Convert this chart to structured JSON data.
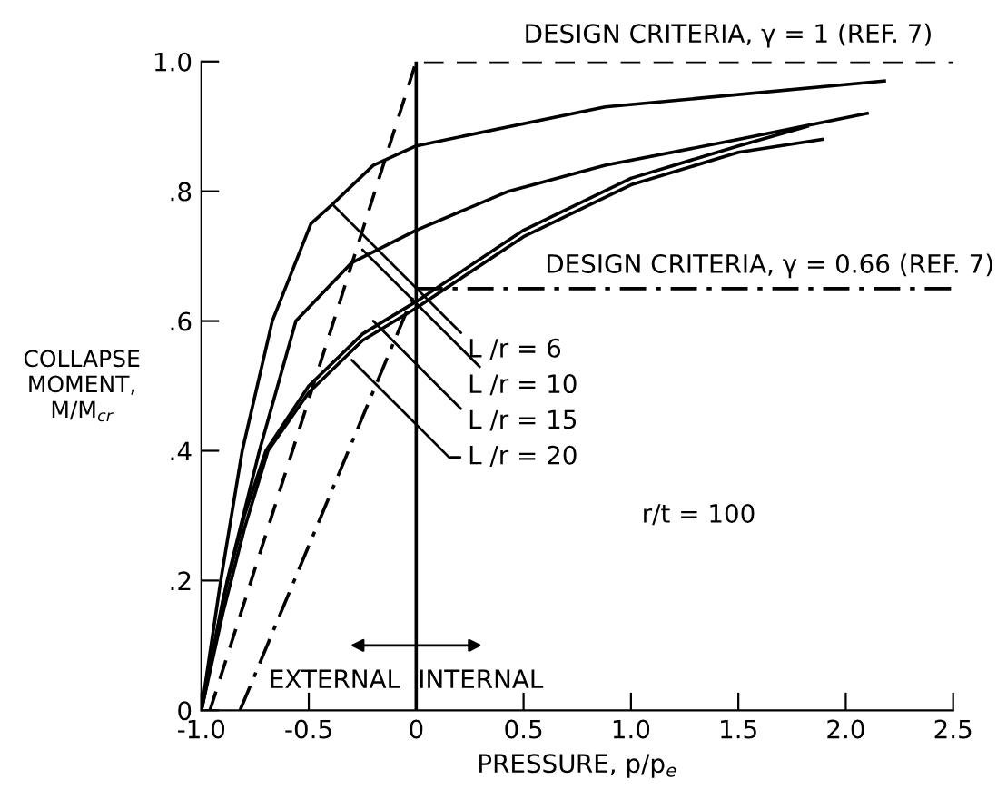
{
  "chart_data": {
    "type": "line",
    "xlabel": "PRESSURE, p/p$_{e}$",
    "ylabel": "COLLAPSE\nMOMENT,\nM/M$_{cr}$",
    "xlim": [
      -1.0,
      2.5
    ],
    "ylim": [
      0,
      1.0
    ],
    "xticks": [
      {
        "value": -1.0,
        "label": "-1.0"
      },
      {
        "value": -0.5,
        "label": "-0.5"
      },
      0,
      0.5,
      {
        "value": 1.0,
        "label": "1.0"
      },
      1.5,
      {
        "value": 2.0,
        "label": "2.0"
      },
      2.5
    ],
    "yticks": [
      0,
      {
        "value": 0.2,
        "label": ".2"
      },
      {
        "value": 0.4,
        "label": ".4"
      },
      {
        "value": 0.6,
        "label": ".6"
      },
      {
        "value": 0.8,
        "label": ".8"
      },
      {
        "value": 1.0,
        "label": "1.0"
      }
    ],
    "grid": false,
    "series": [
      {
        "color": "#000000",
        "line_style": "solid",
        "x": [
          -1.0,
          -0.91,
          -0.81,
          -0.67,
          -0.49,
          -0.39,
          -0.2,
          0,
          0.88,
          2.18
        ],
        "values": [
          0,
          0.2,
          0.4,
          0.6,
          0.75,
          0.78,
          0.84,
          0.87,
          0.93,
          0.97
        ]
      },
      {
        "color": "#000000",
        "line_style": "solid",
        "x": [
          -1.0,
          -0.88,
          -0.73,
          -0.56,
          -0.3,
          0,
          0.43,
          0.88,
          1.5,
          2.1
        ],
        "values": [
          0,
          0.2,
          0.4,
          0.6,
          0.69,
          0.74,
          0.8,
          0.84,
          0.88,
          0.92
        ]
      },
      {
        "color": "#000000",
        "line_style": "solid",
        "x": [
          -1.0,
          -0.9,
          -0.8,
          -0.7,
          -0.5,
          -0.25,
          0,
          0.5,
          1.0,
          1.5,
          1.82
        ],
        "values": [
          0,
          0.17,
          0.3,
          0.4,
          0.5,
          0.58,
          0.63,
          0.74,
          0.82,
          0.87,
          0.9
        ]
      },
      {
        "color": "#000000",
        "line_style": "solid",
        "x": [
          -1.0,
          -0.9,
          -0.8,
          -0.69,
          -0.5,
          -0.25,
          0,
          0.5,
          1.0,
          1.5,
          1.89
        ],
        "values": [
          0,
          0.15,
          0.28,
          0.4,
          0.49,
          0.57,
          0.62,
          0.73,
          0.81,
          0.86,
          0.88
        ]
      },
      {
        "color": "#000000",
        "line_style": "dashed",
        "x": [
          -0.96,
          0,
          2.5
        ],
        "values": [
          0,
          1.0,
          1.0
        ]
      },
      {
        "color": "#000000",
        "line_style": "dashdot",
        "x": [
          -0.82,
          0,
          2.5
        ],
        "values": [
          0,
          0.65,
          0.65
        ]
      }
    ],
    "ref_lines": [
      {
        "axis": "x",
        "value": 0,
        "color": "#000000",
        "line_style": "solid"
      }
    ],
    "annotations": [
      {
        "text": "DESIGN CRITERIA, γ = 1 (REF. 7)",
        "x": 1.4,
        "y": 1.0
      },
      {
        "text": "DESIGN CRITERIA, γ = 0.66 (REF. 7)",
        "x": 1.4,
        "y": 0.65
      },
      {
        "text": "L /r = 6",
        "x": -0.39,
        "y": 0.78
      },
      {
        "text": "L /r = 10",
        "x": -0.25,
        "y": 0.71
      },
      {
        "text": "L /r = 15",
        "x": -0.2,
        "y": 0.6
      },
      {
        "text": "L /r = 20",
        "x": -0.3,
        "y": 0.54
      },
      "r/t = 100",
      "EXTERNAL",
      "INTERNAL"
    ]
  }
}
